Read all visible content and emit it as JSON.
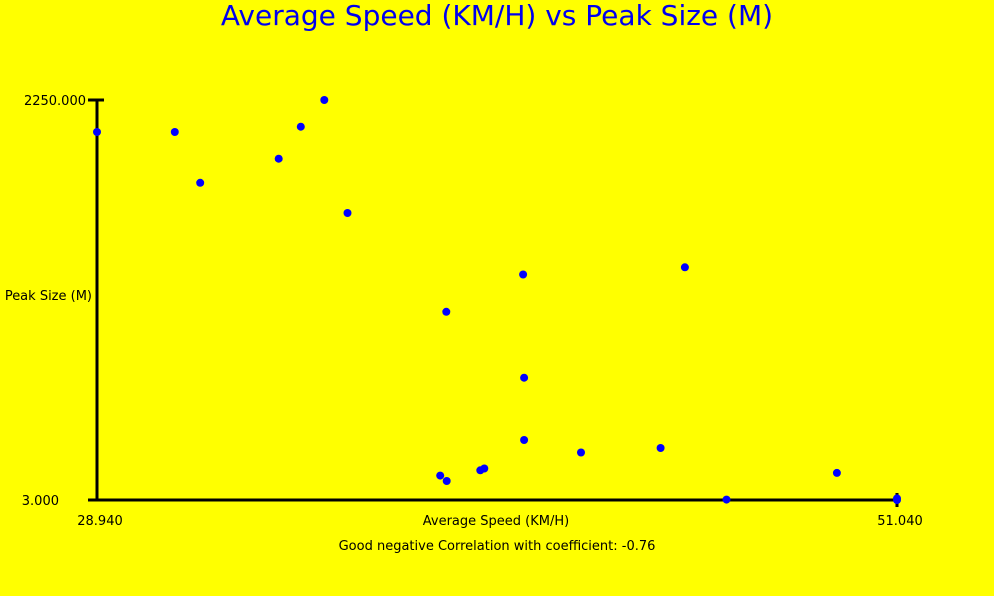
{
  "chart_data": {
    "type": "scatter",
    "title": "Average Speed (KM/H) vs Peak Size (M)",
    "xlabel": "Average Speed (KM/H)",
    "ylabel": "Peak Size (M)",
    "caption": "Good negative Correlation with coefficient: -0.76",
    "xlim": [
      28.94,
      51.04
    ],
    "ylim": [
      3.0,
      2250.0
    ],
    "x_tick_labels": [
      "28.940",
      "51.040"
    ],
    "y_tick_labels": [
      "3.000",
      "2250.000"
    ],
    "grid": false,
    "colors": {
      "background": "#ffff00",
      "points": "#0000ff",
      "title": "#0000ee",
      "axes": "#000000"
    },
    "points": [
      {
        "x": 28.94,
        "y": 2070
      },
      {
        "x": 31.09,
        "y": 2070
      },
      {
        "x": 31.79,
        "y": 1785
      },
      {
        "x": 33.96,
        "y": 1920
      },
      {
        "x": 34.57,
        "y": 2100
      },
      {
        "x": 35.22,
        "y": 2250
      },
      {
        "x": 35.86,
        "y": 1615
      },
      {
        "x": 38.42,
        "y": 140
      },
      {
        "x": 38.59,
        "y": 1060
      },
      {
        "x": 38.6,
        "y": 110
      },
      {
        "x": 39.53,
        "y": 170
      },
      {
        "x": 39.64,
        "y": 180
      },
      {
        "x": 40.74,
        "y": 340
      },
      {
        "x": 40.74,
        "y": 690
      },
      {
        "x": 40.71,
        "y": 1270
      },
      {
        "x": 42.31,
        "y": 270
      },
      {
        "x": 44.51,
        "y": 295
      },
      {
        "x": 45.18,
        "y": 1310
      },
      {
        "x": 46.33,
        "y": 5
      },
      {
        "x": 49.38,
        "y": 155
      },
      {
        "x": 51.04,
        "y": 3
      },
      {
        "x": 51.04,
        "y": 12
      }
    ]
  }
}
